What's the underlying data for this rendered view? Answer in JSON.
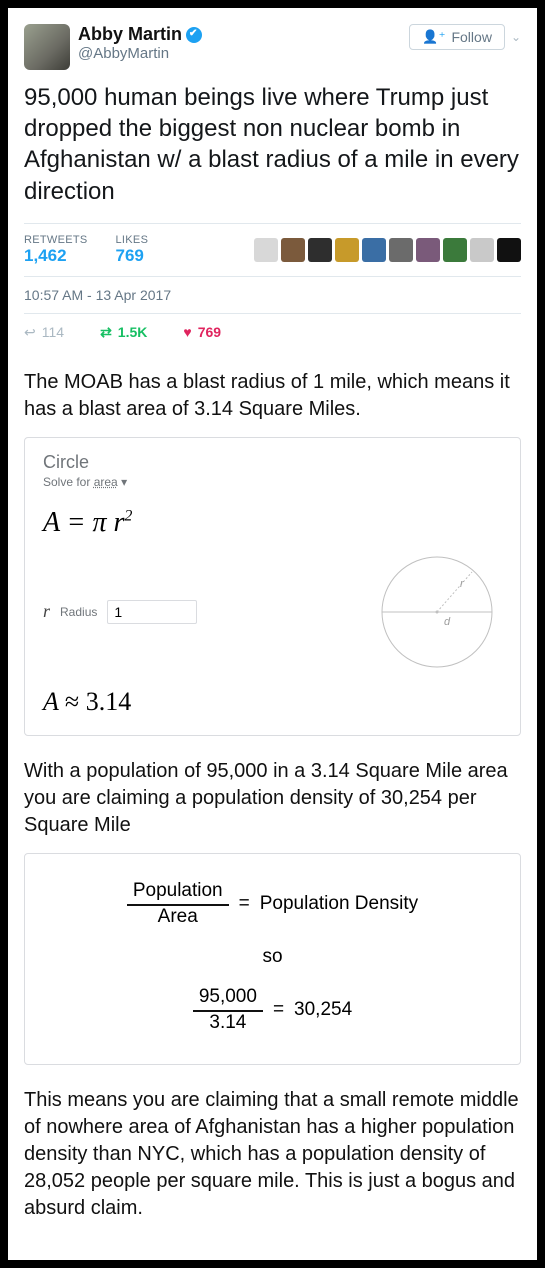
{
  "tweet": {
    "display_name": "Abby Martin",
    "handle": "@AbbyMartin",
    "verified": true,
    "follow_label": "Follow",
    "text": "95,000 human beings live where Trump just dropped the biggest non nuclear bomb in Afghanistan w/ a blast radius of a mile in every direction",
    "retweets_label": "RETWEETS",
    "retweets_count": "1,462",
    "likes_label": "LIKES",
    "likes_count": "769",
    "mini_avatar_colors": [
      "#d8d8d8",
      "#7b5a3c",
      "#2e2e2e",
      "#c79a2a",
      "#3a6ea5",
      "#6b6b6b",
      "#7a5a7a",
      "#3b7a3b",
      "#c9c9c9",
      "#111111"
    ],
    "timestamp": "10:57 AM - 13 Apr 2017",
    "reply_count": "114",
    "retweet_short": "1.5K",
    "like_short": "769"
  },
  "commentary1": "The MOAB has a blast radius of 1 mile, which means it has a blast area of 3.14 Square Miles.",
  "circle_card": {
    "title": "Circle",
    "solve_for_prefix": "Solve for ",
    "solve_for_value": "area",
    "formula": "A  =  π r",
    "formula_exp": "2",
    "r_symbol": "r",
    "r_label": "Radius",
    "r_value": "1",
    "result_lhs": "A ",
    "result_approx": " ≈  3.14",
    "circle_stroke": "#bfbfbf",
    "circle_r_label": "r",
    "circle_d_label": "d"
  },
  "commentary2": "With a population of 95,000 in a 3.14 Square Mile area you are claiming a population density of 30,254 per Square Mile",
  "density": {
    "top1": "Population",
    "bot1": "Area",
    "eq": "=",
    "rhs1": "Population Density",
    "so": "so",
    "top2": "95,000",
    "bot2": "3.14",
    "rhs2": "30,254"
  },
  "commentary3": "This means you are claiming that a small remote middle of nowhere area of Afghanistan has a higher population density than NYC, which has a population density of 28,052 people per square mile.  This is just a bogus and absurd claim."
}
